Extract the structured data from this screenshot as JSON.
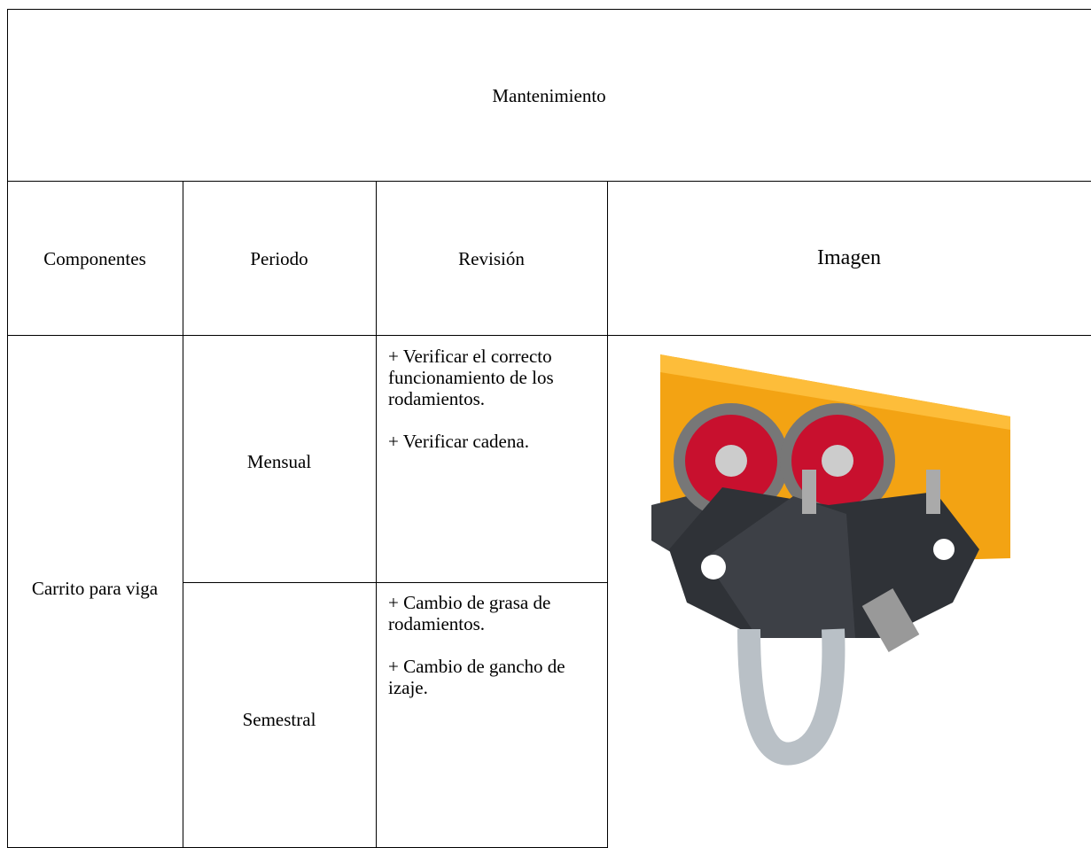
{
  "title": "Mantenimiento",
  "table": {
    "header": [
      "Componentes",
      "Periodo",
      "Revisión",
      "Imagen"
    ],
    "rows": [
      {
        "component": "Carrito para viga",
        "periods": [
          {
            "period": "Mensual",
            "items": [
              "+ Verificar el correcto funcionamiento de los rodamientos.",
              "+ Verificar cadena."
            ]
          },
          {
            "period": "Semestral",
            "items": [
              "+ Cambio de grasa de rodamientos.",
              "+ Cambio de gancho de izaje."
            ]
          }
        ]
      }
    ]
  }
}
